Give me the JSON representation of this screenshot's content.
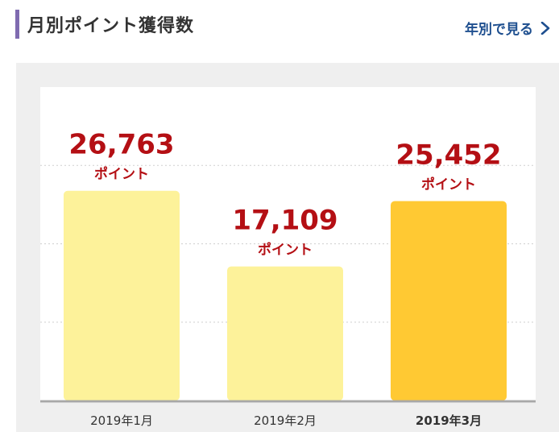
{
  "header": {
    "title": "月別ポイント獲得数",
    "yearly_link": "年別で見る"
  },
  "icons": {
    "link_arrow": "chevron-right-icon"
  },
  "colors": {
    "accent_bar": "#7f6bb0",
    "link": "#1e4f8f",
    "value_text": "#b40f14",
    "bar_normal": "#fdf29a",
    "bar_current": "#ffc933"
  },
  "chart_data": {
    "type": "bar",
    "categories": [
      "2019年1月",
      "2019年2月",
      "2019年3月"
    ],
    "values": [
      26763,
      17109,
      25452
    ],
    "value_labels": [
      "26,763",
      "17,109",
      "25,452"
    ],
    "unit_label": "ポイント",
    "highlighted_category": "2019年3月",
    "ylim": [
      0,
      40000
    ],
    "grid": "dotted horizontal"
  }
}
